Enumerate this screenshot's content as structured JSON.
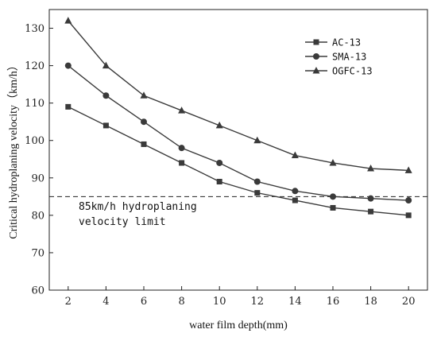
{
  "chart_data": {
    "type": "line",
    "xlabel": "water film depth(mm)",
    "ylabel": "Critical hydroplaning velocity（km/h）",
    "xlim": [
      1,
      21
    ],
    "ylim": [
      60,
      135
    ],
    "xticks": [
      2,
      4,
      6,
      8,
      10,
      12,
      14,
      16,
      18,
      20
    ],
    "yticks": [
      60,
      70,
      80,
      90,
      100,
      110,
      120,
      130
    ],
    "x": [
      2,
      4,
      6,
      8,
      10,
      12,
      14,
      16,
      18,
      20
    ],
    "series": [
      {
        "name": "AC-13",
        "marker": "square",
        "values": [
          109,
          104,
          99,
          94,
          89,
          86,
          84,
          82,
          81,
          80
        ]
      },
      {
        "name": "SMA-13",
        "marker": "circle",
        "values": [
          120,
          112,
          105,
          98,
          94,
          89,
          86.5,
          85,
          84.5,
          84
        ]
      },
      {
        "name": "OGFC-13",
        "marker": "triangle",
        "values": [
          132,
          120,
          112,
          108,
          104,
          100,
          96,
          94,
          92.5,
          92
        ]
      }
    ],
    "reference_line": {
      "y": 85,
      "style": "dashed",
      "label_line1": "85km/h hydroplaning",
      "label_line2": "velocity limit"
    },
    "legend_position": "top-right",
    "grid": false,
    "color": "#3a3a3a"
  }
}
